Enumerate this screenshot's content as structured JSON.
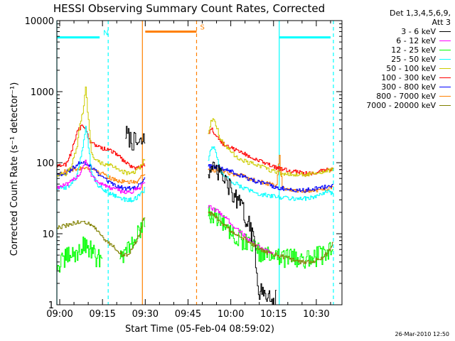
{
  "chart_data": {
    "type": "line",
    "title": "HESSI Observing Summary Count Rates, Corrected",
    "xlabel": "Start Time (05-Feb-04 08:59:02)",
    "ylabel": "Corrected Count Rate (s⁻¹ detector⁻¹)",
    "yscale": "log",
    "ylim": [
      1,
      10000
    ],
    "xlim": [
      "08:59",
      "10:39"
    ],
    "x_ticks": [
      "09:00",
      "09:15",
      "09:30",
      "09:45",
      "10:00",
      "10:15",
      "10:30"
    ],
    "y_ticks": [
      "1",
      "10",
      "100",
      "1000",
      "10000"
    ],
    "grid": false,
    "legend_header": [
      "Det 1,3,4,5,6,9,",
      "Att 3"
    ],
    "legend_position": "right",
    "series": [
      {
        "name": "3 - 6 keV",
        "color": "#000000",
        "segments": [
          {
            "x": [
              "09:23",
              "09:24",
              "09:25",
              "09:26",
              "09:27",
              "09:28",
              "09:29",
              "09:30"
            ],
            "y": [
              260,
              230,
              205,
              195,
              185,
              180,
              200,
              210
            ]
          },
          {
            "x": [
              "09:52",
              "09:54",
              "09:56",
              "09:58",
              "10:00",
              "10:02",
              "10:04",
              "10:06",
              "10:08",
              "10:09",
              "10:10",
              "10:12",
              "10:14",
              "10:16"
            ],
            "y": [
              80,
              75,
              70,
              55,
              40,
              30,
              22,
              14,
              8,
              3,
              1.5,
              1.4,
              1.3,
              1.2
            ]
          }
        ]
      },
      {
        "name": "6 - 12 keV",
        "color": "#ff00ff",
        "segments": [
          {
            "x": [
              "08:59",
              "09:03",
              "09:07",
              "09:09",
              "09:11",
              "09:13",
              "09:17",
              "09:21",
              "09:25",
              "09:28",
              "09:30"
            ],
            "y": [
              45,
              50,
              70,
              110,
              65,
              55,
              45,
              40,
              38,
              45,
              55
            ]
          },
          {
            "x": [
              "09:52",
              "09:54",
              "09:56",
              "09:58",
              "10:00",
              "10:04",
              "10:08",
              "10:12",
              "10:14",
              "10:15"
            ],
            "y": [
              24,
              22,
              20,
              17,
              14,
              10,
              7,
              6,
              5.5,
              5.5
            ]
          }
        ]
      },
      {
        "name": "12 - 25 keV",
        "color": "#00ff00",
        "segments": [
          {
            "x": [
              "08:59",
              "09:01",
              "09:03",
              "09:05",
              "09:07",
              "09:09",
              "09:11",
              "09:13",
              "09:15"
            ],
            "y": [
              3.5,
              4,
              5,
              5,
              6,
              7,
              6,
              4,
              5.5
            ]
          },
          {
            "x": [
              "09:21",
              "09:24",
              "09:27",
              "09:29",
              "09:30"
            ],
            "y": [
              5,
              6,
              9,
              13,
              16
            ]
          },
          {
            "x": [
              "09:52",
              "09:54",
              "09:56",
              "09:58",
              "10:00",
              "10:04",
              "10:08",
              "10:12",
              "10:16",
              "10:20",
              "10:24",
              "10:28",
              "10:32",
              "10:35",
              "10:36"
            ],
            "y": [
              20,
              17,
              15,
              13,
              11,
              8,
              6,
              5,
              4.5,
              4.5,
              4.5,
              4.5,
              5,
              6,
              8
            ]
          }
        ]
      },
      {
        "name": "25 - 50 keV",
        "color": "#00ffff",
        "segments": [
          {
            "x": [
              "08:59",
              "09:02",
              "09:04",
              "09:06",
              "09:08",
              "09:09",
              "09:10",
              "09:11",
              "09:13",
              "09:15",
              "09:17",
              "09:19",
              "09:21",
              "09:23",
              "09:25",
              "09:27",
              "09:29",
              "09:30"
            ],
            "y": [
              43,
              45,
              50,
              65,
              170,
              330,
              170,
              75,
              50,
              43,
              38,
              35,
              32,
              30,
              30,
              32,
              38,
              45
            ]
          },
          {
            "x": [
              "09:52",
              "09:53",
              "09:54",
              "09:55",
              "09:56",
              "09:58",
              "10:00",
              "10:04",
              "10:08",
              "10:12",
              "10:16",
              "10:20",
              "10:24",
              "10:28",
              "10:30",
              "10:32",
              "10:34",
              "10:36"
            ],
            "y": [
              110,
              160,
              170,
              120,
              80,
              65,
              55,
              45,
              38,
              35,
              33,
              32,
              31,
              32,
              34,
              36,
              40,
              35
            ]
          }
        ]
      },
      {
        "name": "50 - 100 keV",
        "color": "#cccc00",
        "segments": [
          {
            "x": [
              "08:59",
              "09:02",
              "09:04",
              "09:06",
              "09:07",
              "09:08",
              "09:09",
              "09:10",
              "09:11",
              "09:12",
              "09:14",
              "09:16",
              "09:18",
              "09:20",
              "09:22",
              "09:24",
              "09:26",
              "09:28",
              "09:29",
              "09:30"
            ],
            "y": [
              68,
              70,
              90,
              170,
              350,
              500,
              1100,
              380,
              140,
              110,
              100,
              95,
              90,
              85,
              75,
              70,
              72,
              85,
              100,
              120
            ]
          },
          {
            "x": [
              "09:52",
              "09:53",
              "09:54",
              "09:55",
              "09:56",
              "09:58",
              "10:00",
              "10:02",
              "10:06",
              "10:10",
              "10:14",
              "10:18",
              "10:22",
              "10:26",
              "10:30",
              "10:33",
              "10:36"
            ],
            "y": [
              260,
              380,
              420,
              320,
              230,
              175,
              140,
              120,
              100,
              90,
              78,
              70,
              68,
              68,
              70,
              75,
              80
            ]
          }
        ]
      },
      {
        "name": "100 - 300 keV",
        "color": "#ff0000",
        "segments": [
          {
            "x": [
              "08:59",
              "09:02",
              "09:04",
              "09:06",
              "09:07",
              "09:08",
              "09:09",
              "09:10",
              "09:11",
              "09:13",
              "09:15",
              "09:17",
              "09:19",
              "09:21",
              "09:23",
              "09:25",
              "09:27",
              "09:29",
              "09:30"
            ],
            "y": [
              88,
              95,
              140,
              270,
              310,
              330,
              300,
              230,
              190,
              170,
              160,
              150,
              140,
              120,
              100,
              90,
              85,
              90,
              95
            ]
          },
          {
            "x": [
              "09:52",
              "09:53",
              "09:54",
              "09:55",
              "09:56",
              "09:58",
              "10:00",
              "10:02",
              "10:04",
              "10:06",
              "10:10",
              "10:14",
              "10:18",
              "10:22",
              "10:26",
              "10:30",
              "10:34",
              "10:36"
            ],
            "y": [
              260,
              300,
              270,
              230,
              200,
              175,
              160,
              150,
              140,
              125,
              105,
              90,
              80,
              75,
              70,
              72,
              82,
              80
            ]
          }
        ]
      },
      {
        "name": "300 - 800 keV",
        "color": "#0000ff",
        "segments": [
          {
            "x": [
              "08:59",
              "09:02",
              "09:04",
              "09:06",
              "09:08",
              "09:09",
              "09:10",
              "09:12",
              "09:15",
              "09:18",
              "09:21",
              "09:24",
              "09:27",
              "09:29",
              "09:30"
            ],
            "y": [
              68,
              72,
              80,
              95,
              100,
              100,
              95,
              80,
              60,
              50,
              45,
              43,
              45,
              55,
              65
            ]
          },
          {
            "x": [
              "09:52",
              "09:55",
              "09:58",
              "10:00",
              "10:04",
              "10:08",
              "10:12",
              "10:16",
              "10:20",
              "10:24",
              "10:28",
              "10:32",
              "10:36"
            ],
            "y": [
              90,
              85,
              80,
              75,
              65,
              55,
              50,
              45,
              42,
              40,
              42,
              45,
              48
            ]
          }
        ]
      },
      {
        "name": "800 - 7000 keV",
        "color": "#ff8000",
        "segments": [
          {
            "x": [
              "08:59",
              "09:02",
              "09:05",
              "09:08",
              "09:10",
              "09:12",
              "09:15",
              "09:18",
              "09:21",
              "09:24",
              "09:27",
              "09:29",
              "09:30"
            ],
            "y": [
              70,
              75,
              80,
              85,
              85,
              80,
              70,
              60,
              55,
              52,
              55,
              65,
              75
            ]
          },
          {
            "x": [
              "09:52",
              "09:55",
              "09:58",
              "10:00",
              "10:04",
              "10:08",
              "10:12",
              "10:16",
              "10:17",
              "10:18",
              "10:20",
              "10:24",
              "10:28",
              "10:32",
              "10:36"
            ],
            "y": [
              80,
              78,
              75,
              70,
              65,
              58,
              52,
              48,
              130,
              45,
              42,
              40,
              40,
              42,
              45
            ]
          }
        ]
      },
      {
        "name": "7000 - 20000 keV",
        "color": "#808000",
        "segments": [
          {
            "x": [
              "08:59",
              "09:02",
              "09:05",
              "09:08",
              "09:10",
              "09:12",
              "09:14",
              "09:16",
              "09:18",
              "09:20",
              "09:22",
              "09:24",
              "09:26",
              "09:28",
              "09:29",
              "09:30"
            ],
            "y": [
              12,
              13,
              14,
              15,
              14,
              12,
              10,
              8,
              7,
              6,
              5,
              5,
              7,
              10,
              15,
              18
            ]
          },
          {
            "x": [
              "09:52",
              "09:54",
              "09:56",
              "09:58",
              "10:00",
              "10:04",
              "10:08",
              "10:12",
              "10:16",
              "10:20",
              "10:24",
              "10:28",
              "10:32",
              "10:35",
              "10:36"
            ],
            "y": [
              20,
              18,
              15,
              13,
              11,
              9,
              7,
              5.5,
              5,
              4.5,
              4,
              4,
              4.5,
              6,
              8
            ]
          }
        ]
      }
    ],
    "flags": [
      {
        "label": "N",
        "color": "#00ffff",
        "y": 5800,
        "bars": [
          [
            "08:59",
            "09:14"
          ],
          [
            "10:17",
            "10:35"
          ]
        ],
        "dashed_lines": [
          "09:17",
          "10:36"
        ],
        "solid_lines": [
          "08:59",
          "10:17"
        ]
      },
      {
        "label": "S",
        "color": "#ff8000",
        "y": 7000,
        "bars": [
          [
            "09:30",
            "09:48"
          ]
        ],
        "dashed_lines": [
          "09:48"
        ],
        "solid_lines": [
          "09:29"
        ]
      }
    ]
  },
  "footer": {
    "datestamp": "26-Mar-2010 12:50"
  }
}
